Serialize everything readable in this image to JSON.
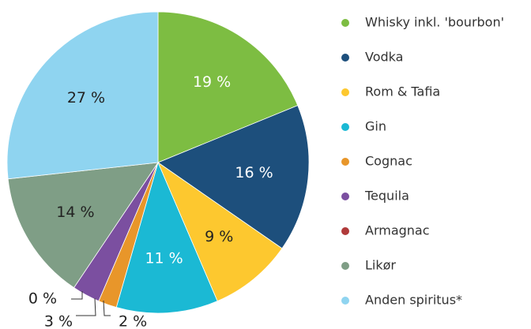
{
  "chart_data": {
    "type": "pie",
    "categories": [
      "Whisky inkl. 'bourbon'",
      "Vodka",
      "Rom & Tafia",
      "Gin",
      "Cognac",
      "Tequila",
      "Armagnac",
      "Likør",
      "Anden spiritus*"
    ],
    "values": [
      19,
      16,
      9,
      11,
      2,
      3,
      0,
      14,
      27
    ],
    "value_labels": [
      "19 %",
      "16 %",
      "9 %",
      "11 %",
      "2 %",
      "3 %",
      "0 %",
      "14 %",
      "27 %"
    ],
    "colors": [
      "#7dbd42",
      "#1d4f7c",
      "#fdc82f",
      "#1bb9d4",
      "#e8962a",
      "#7b4fa0",
      "#b03a3a",
      "#7f9e86",
      "#8fd4f0"
    ],
    "legend": "right"
  }
}
